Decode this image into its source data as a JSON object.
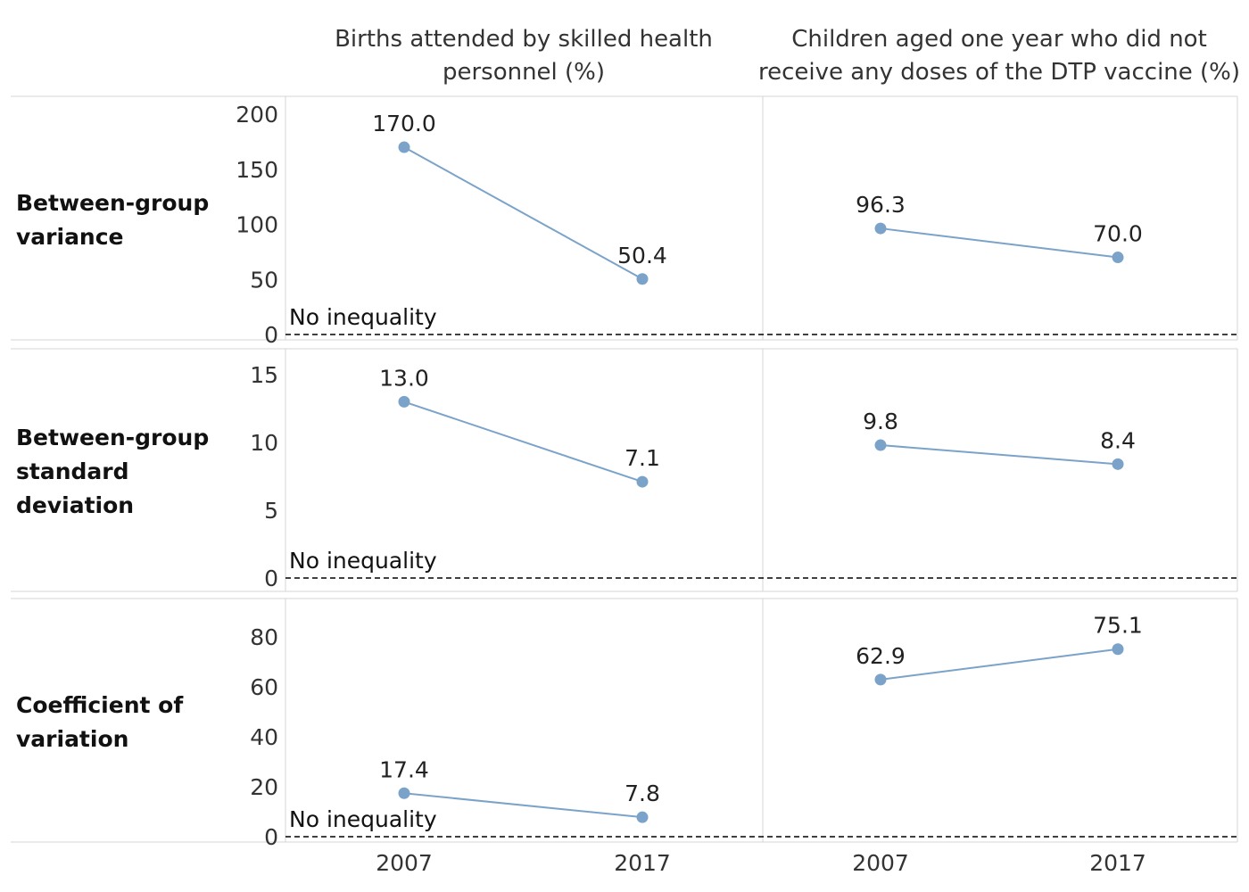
{
  "chart_data": {
    "type": "line",
    "columns": [
      {
        "title": [
          "Births attended by skilled health",
          "personnel (%)"
        ]
      },
      {
        "title": [
          "Children aged one year who did not",
          "receive any doses of the DTP vaccine (%)"
        ]
      }
    ],
    "x": [
      "2007",
      "2017"
    ],
    "rows": [
      {
        "label": [
          "Between-group",
          "variance"
        ],
        "yticks": [
          0,
          50,
          100,
          150,
          200
        ],
        "ylim": [
          0,
          210
        ],
        "values": [
          [
            170.0,
            50.4
          ],
          [
            96.3,
            70.0
          ]
        ],
        "labels": [
          [
            "170.0",
            "50.4"
          ],
          [
            "96.3",
            "70.0"
          ]
        ]
      },
      {
        "label": [
          "Between-group",
          "standard",
          "deviation"
        ],
        "yticks": [
          0,
          5,
          10,
          15
        ],
        "ylim": [
          0,
          16.5
        ],
        "values": [
          [
            13.0,
            7.1
          ],
          [
            9.8,
            8.4
          ]
        ],
        "labels": [
          [
            "13.0",
            "7.1"
          ],
          [
            "9.8",
            "8.4"
          ]
        ]
      },
      {
        "label": [
          "Coefficient of",
          "variation"
        ],
        "yticks": [
          0,
          20,
          40,
          60,
          80
        ],
        "ylim": [
          0,
          92
        ],
        "values": [
          [
            17.4,
            7.8
          ],
          [
            62.9,
            75.1
          ]
        ],
        "labels": [
          [
            "17.4",
            "7.8"
          ],
          [
            "62.9",
            "75.1"
          ]
        ]
      }
    ],
    "reference_line": {
      "value": 0,
      "label": "No inequality",
      "style": "dashed"
    },
    "colors": {
      "series": "#7ba3c9",
      "grid": "#d4d4d4",
      "reference": "#000000"
    },
    "grid": false,
    "legend": "none"
  }
}
